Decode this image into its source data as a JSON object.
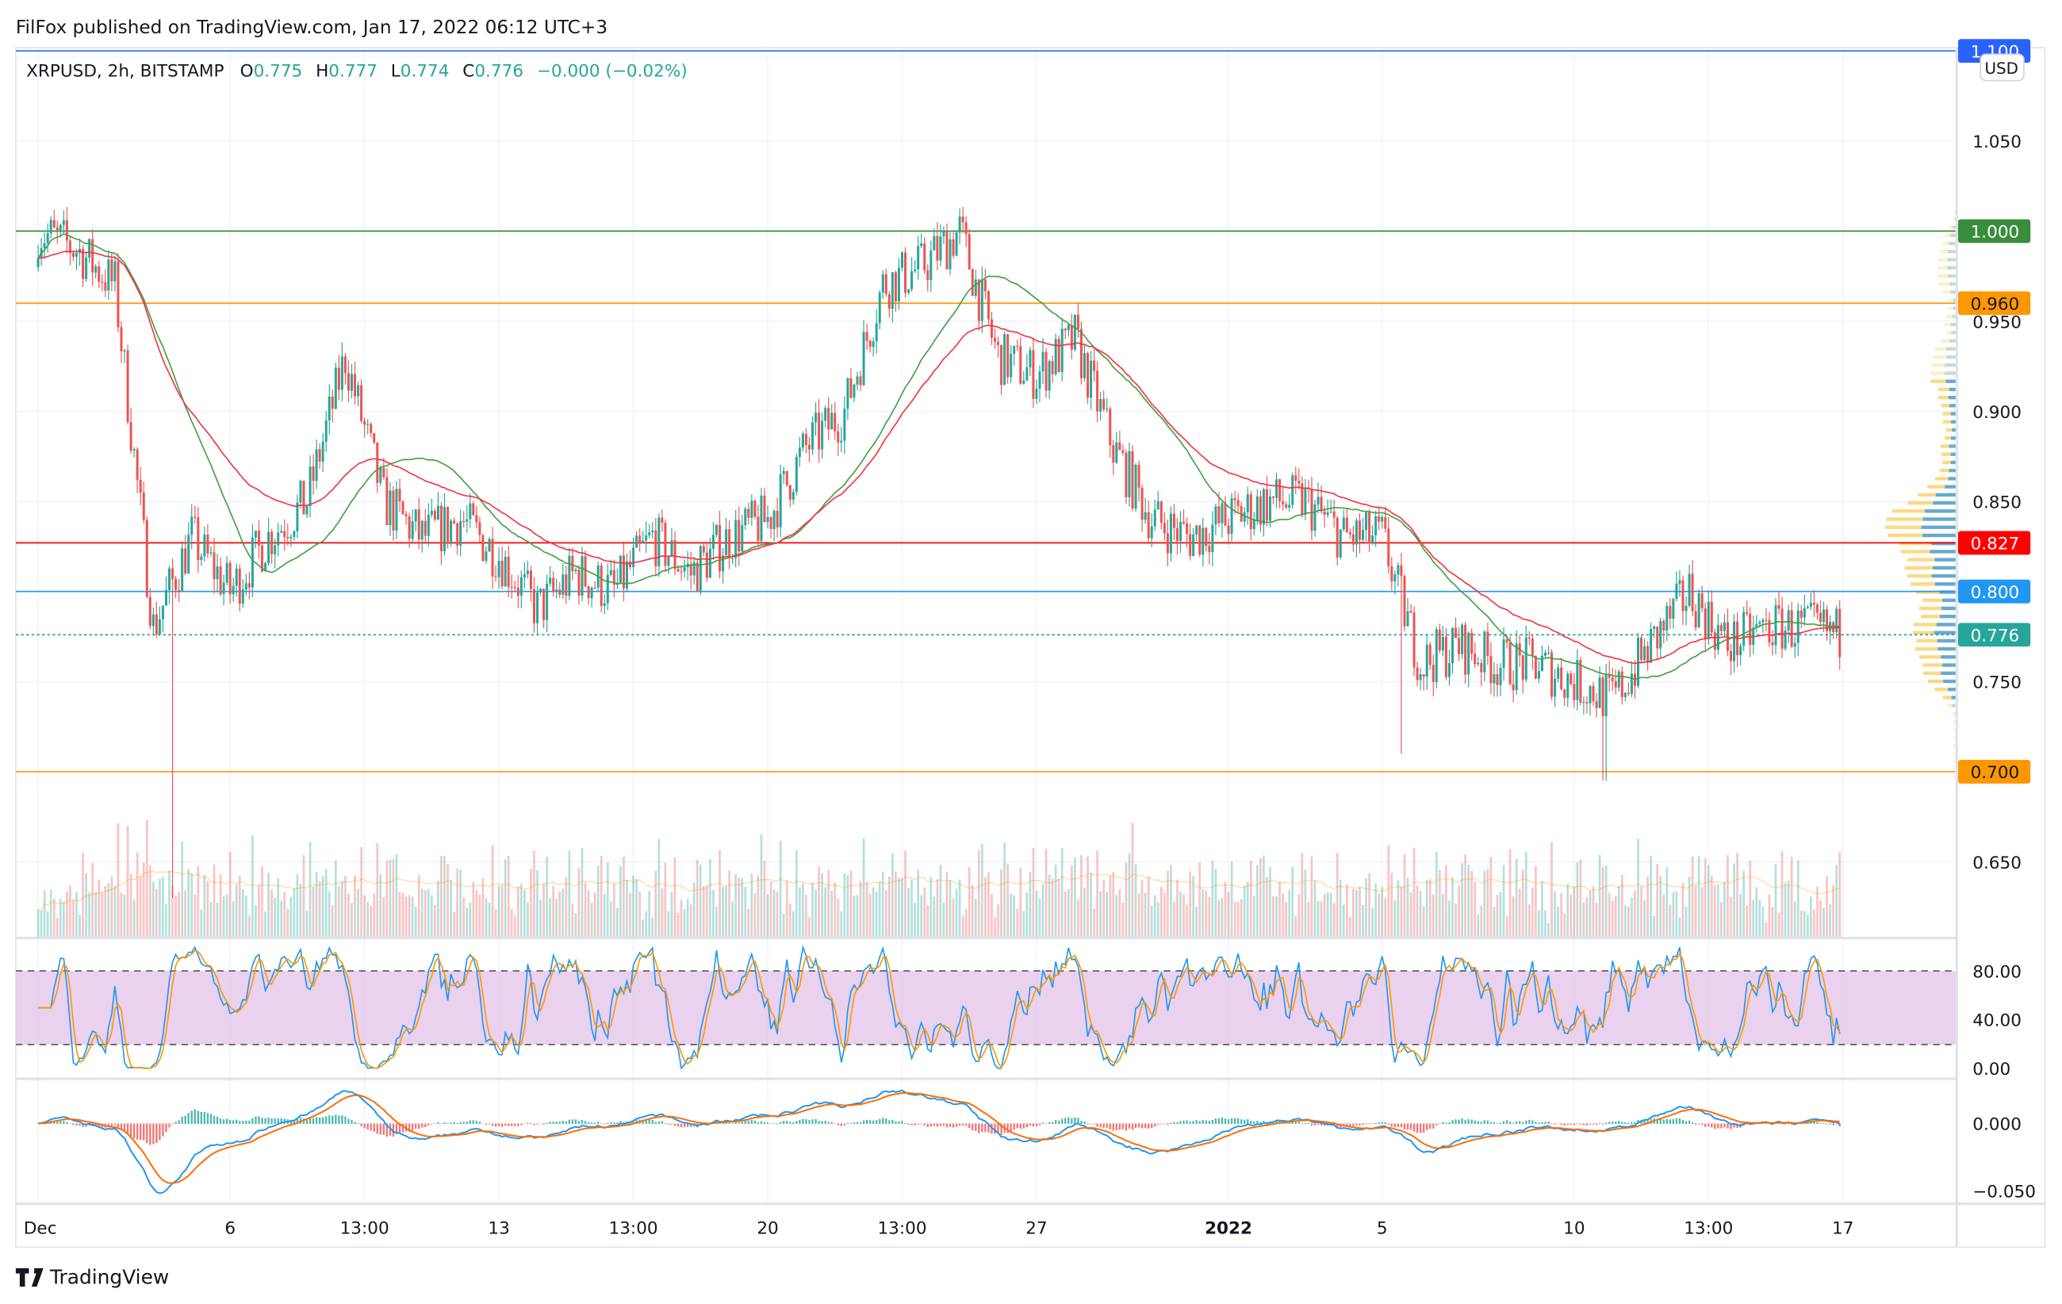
{
  "header": {
    "published": "FilFox published on TradingView.com, Jan 17, 2022 06:12 UTC+3"
  },
  "legend": {
    "symbol": "XRPUSD, 2h, BITSTAMP",
    "o_label": "O",
    "o": "0.775",
    "h_label": "H",
    "h": "0.777",
    "l_label": "L",
    "l": "0.774",
    "c_label": "C",
    "c": "0.776",
    "change": "−0.000 (−0.02%)"
  },
  "currency_button": "USD",
  "footer": {
    "brand": "TradingView"
  },
  "colors": {
    "up": "#26a69a",
    "down": "#ef5350",
    "ma_fast": "#43a047",
    "ma_slow": "#f23645",
    "stoch_k": "#2196f3",
    "stoch_d": "#ff9800",
    "stoch_band": "#e1bee7"
  },
  "chart_data": {
    "type": "candlestick",
    "title": "XRPUSD, 2h, BITSTAMP",
    "ylim": [
      0.62,
      1.1
    ],
    "y_ticks": [
      "1.050",
      "0.950",
      "0.900",
      "0.850",
      "0.750",
      "0.650"
    ],
    "x_ticks": [
      {
        "label": "Dec",
        "day": 0
      },
      {
        "label": "6",
        "day": 5
      },
      {
        "label": "13:00",
        "day": 8.5
      },
      {
        "label": "13",
        "day": 12
      },
      {
        "label": "13:00",
        "day": 15.5
      },
      {
        "label": "20",
        "day": 19
      },
      {
        "label": "13:00",
        "day": 22.5
      },
      {
        "label": "27",
        "day": 26
      },
      {
        "label": "2022",
        "day": 31
      },
      {
        "label": "5",
        "day": 35
      },
      {
        "label": "10",
        "day": 40
      },
      {
        "label": "13:00",
        "day": 43.5
      },
      {
        "label": "17",
        "day": 47
      }
    ],
    "daily_close_approx": {
      "start_date": "Dec 1 2021",
      "values": [
        1.0,
        0.99,
        0.97,
        0.78,
        0.83,
        0.8,
        0.83,
        0.85,
        0.93,
        0.85,
        0.83,
        0.84,
        0.82,
        0.79,
        0.81,
        0.8,
        0.83,
        0.81,
        0.83,
        0.84,
        0.88,
        0.9,
        0.97,
        0.98,
        1.0,
        0.93,
        0.92,
        0.94,
        0.88,
        0.84,
        0.83,
        0.84,
        0.85,
        0.85,
        0.83,
        0.83,
        0.76,
        0.77,
        0.76,
        0.76,
        0.75,
        0.74,
        0.77,
        0.8,
        0.77,
        0.78,
        0.78,
        0.776
      ]
    },
    "wick_lows": [
      {
        "day": 3.5,
        "low": 0.63
      },
      {
        "day": 35.5,
        "low": 0.71
      },
      {
        "day": 40.8,
        "low": 0.695
      }
    ],
    "price_lines": [
      {
        "value": "1.100",
        "color": "#2962ff",
        "style": "solid"
      },
      {
        "value": "1.000",
        "color": "#388e3c",
        "style": "solid"
      },
      {
        "value": "0.960",
        "color": "#ff9800",
        "style": "solid"
      },
      {
        "value": "0.827",
        "color": "#ff0000",
        "style": "solid"
      },
      {
        "value": "0.800",
        "color": "#2196f3",
        "style": "solid"
      },
      {
        "value": "0.776",
        "color": "#26a69a",
        "style": "dotted"
      },
      {
        "value": "0.700",
        "color": "#ff9800",
        "style": "solid"
      }
    ],
    "stoch_rsi": {
      "ylim": [
        0,
        100
      ],
      "ticks": [
        "80.00",
        "40.00",
        "0.00"
      ],
      "band": [
        20,
        80
      ]
    },
    "macd": {
      "ticks": [
        "0.000",
        "−0.050"
      ]
    }
  }
}
